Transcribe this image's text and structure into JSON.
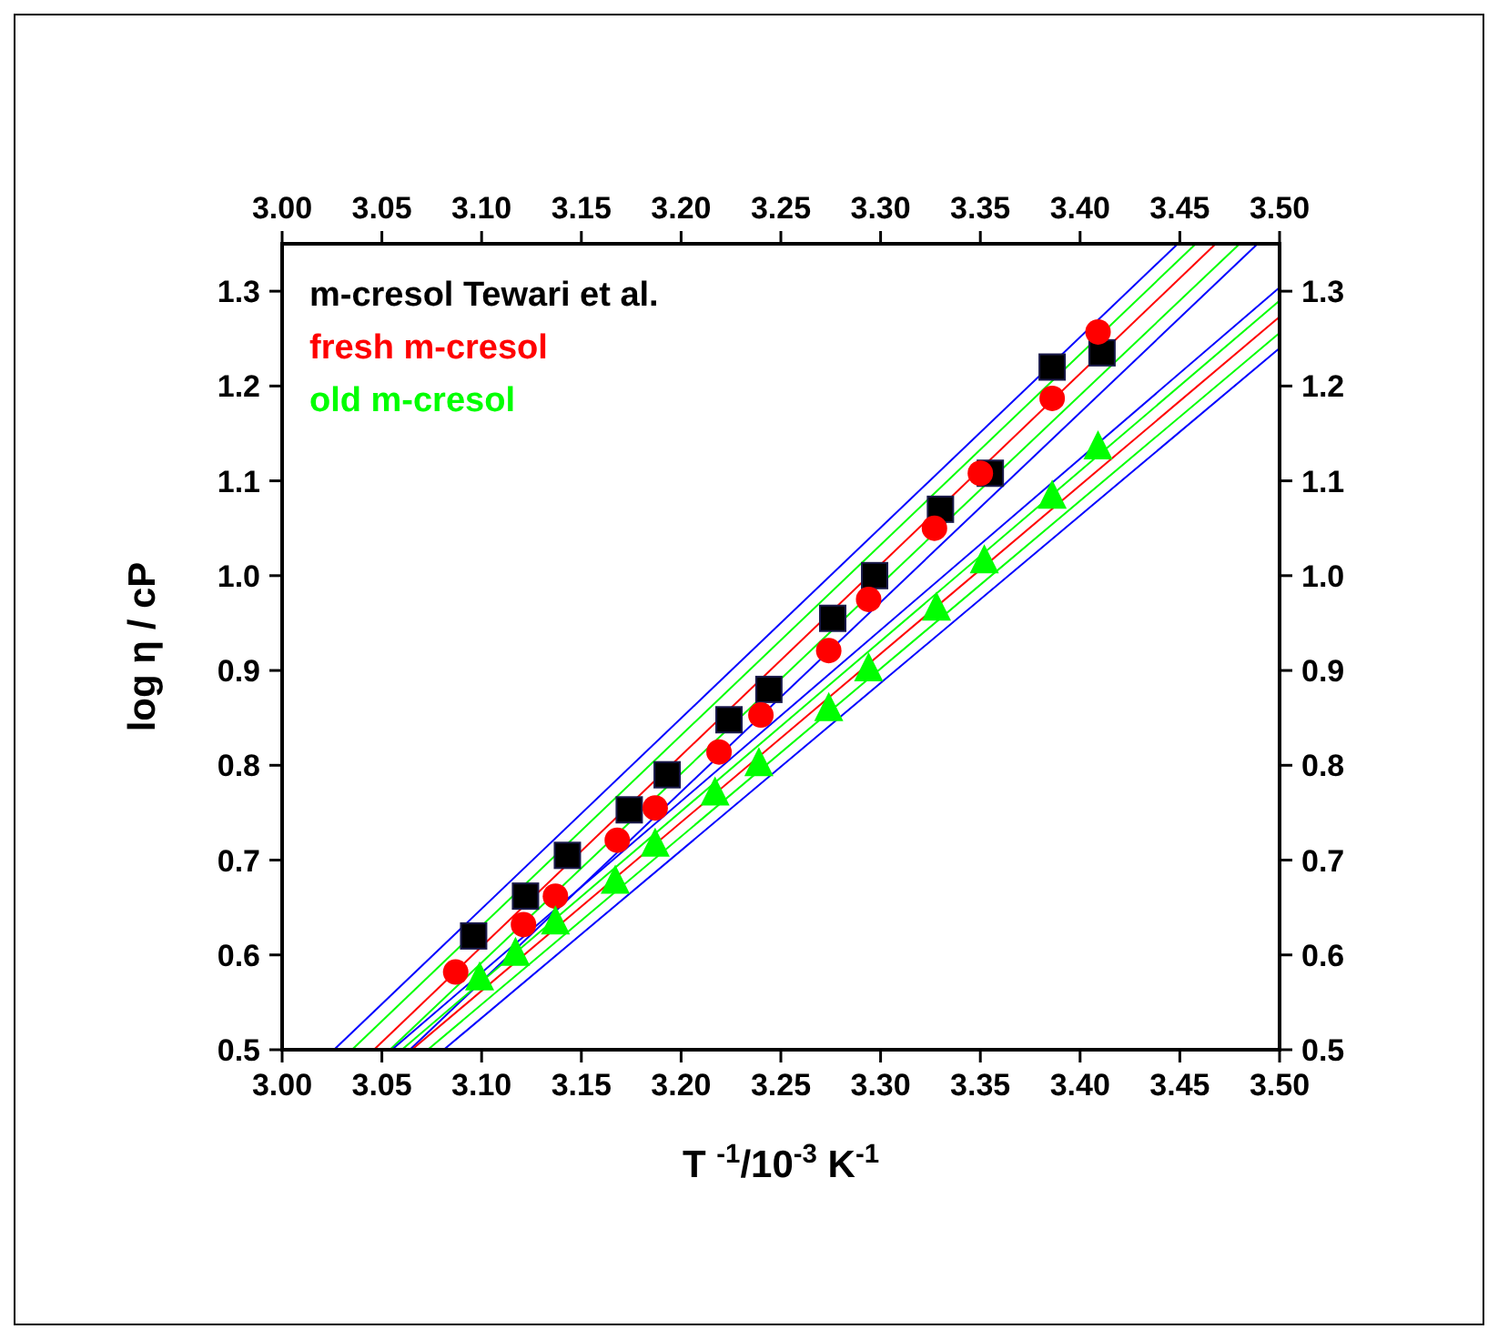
{
  "chart_data": {
    "type": "scatter",
    "xlabel": "T $^{-1}$/10$^{-3}$ K$^{-1}$",
    "ylabel": "log η / cP",
    "legend": "top left",
    "grid": false,
    "xlim": [
      3.0,
      3.5
    ],
    "ylim": [
      0.5,
      1.35
    ],
    "x2lim": [
      3.0,
      3.5
    ],
    "y2lim": [
      0.5,
      1.35
    ],
    "xticks": [
      {
        "value": 3.0,
        "label": "3.00"
      },
      3.05,
      {
        "value": 3.1,
        "label": "3.10"
      },
      3.15,
      {
        "value": 3.2,
        "label": "3.20"
      },
      3.25,
      {
        "value": 3.3,
        "label": "3.30"
      },
      3.35,
      {
        "value": 3.4,
        "label": "3.40"
      },
      3.45,
      {
        "value": 3.5,
        "label": "3.50"
      }
    ],
    "x2ticks": [
      {
        "value": 3.0,
        "label": "3.00"
      },
      3.05,
      {
        "value": 3.1,
        "label": "3.10"
      },
      3.15,
      {
        "value": 3.2,
        "label": "3.20"
      },
      3.25,
      {
        "value": 3.3,
        "label": "3.30"
      },
      3.35,
      {
        "value": 3.4,
        "label": "3.40"
      },
      3.45,
      {
        "value": 3.5,
        "label": "3.50"
      }
    ],
    "yticks": [
      0.5,
      0.6,
      0.7,
      0.8,
      0.9,
      {
        "value": 1.0,
        "label": "1.0"
      },
      1.1,
      1.2,
      1.3
    ],
    "y2ticks": [
      0.5,
      0.6,
      0.7,
      0.8,
      0.9,
      {
        "value": 1.0,
        "label": "1.0"
      },
      1.1,
      1.2,
      1.3
    ],
    "series": [
      {
        "type": "line",
        "color": "#0000ff",
        "x": [
          3.026,
          3.449
        ],
        "values": [
          0.5,
          1.35
        ]
      },
      {
        "type": "line",
        "color": "#00ff00",
        "x": [
          3.035,
          3.458
        ],
        "values": [
          0.5,
          1.35
        ]
      },
      {
        "type": "line",
        "color": "#ff0000",
        "x": [
          3.046,
          3.468
        ],
        "values": [
          0.5,
          1.35
        ]
      },
      {
        "type": "line",
        "color": "#00ff00",
        "x": [
          3.054,
          3.48
        ],
        "values": [
          0.5,
          1.35
        ]
      },
      {
        "type": "line",
        "color": "#0000ff",
        "x": [
          3.064,
          3.489
        ],
        "values": [
          0.5,
          1.35
        ]
      },
      {
        "type": "line",
        "color": "#0000ff",
        "x": [
          3.055,
          3.5
        ],
        "values": [
          0.5,
          1.304
        ]
      },
      {
        "type": "line",
        "color": "#00ff00",
        "x": [
          3.06,
          3.5
        ],
        "values": [
          0.5,
          1.29
        ]
      },
      {
        "type": "line",
        "color": "#ff0000",
        "x": [
          3.065,
          3.5
        ],
        "values": [
          0.5,
          1.273
        ]
      },
      {
        "type": "line",
        "color": "#00ff00",
        "x": [
          3.073,
          3.5
        ],
        "values": [
          0.5,
          1.256
        ]
      },
      {
        "type": "line",
        "color": "#0000ff",
        "x": [
          3.081,
          3.5
        ],
        "values": [
          0.5,
          1.24
        ]
      },
      {
        "name": "m-cresol Tewari et al.",
        "marker": "square",
        "color": "#000000",
        "x": [
          3.096,
          3.122,
          3.143,
          3.174,
          3.193,
          3.224,
          3.244,
          3.276,
          3.297,
          3.33,
          3.355,
          3.386,
          3.411
        ],
        "values": [
          0.62,
          0.662,
          0.705,
          0.753,
          0.79,
          0.848,
          0.88,
          0.955,
          1.0,
          1.07,
          1.108,
          1.22,
          1.235
        ]
      },
      {
        "name": "fresh m-cresol",
        "marker": "circle",
        "color": "#ff0000",
        "x": [
          3.087,
          3.121,
          3.137,
          3.168,
          3.187,
          3.219,
          3.24,
          3.274,
          3.294,
          3.327,
          3.35,
          3.386,
          3.409
        ],
        "values": [
          0.582,
          0.632,
          0.662,
          0.721,
          0.755,
          0.814,
          0.853,
          0.921,
          0.975,
          1.05,
          1.108,
          1.187,
          1.257
        ]
      },
      {
        "name": "old m-cresol",
        "marker": "triangle",
        "color": "#00ff00",
        "x": [
          3.099,
          3.117,
          3.137,
          3.167,
          3.187,
          3.217,
          3.239,
          3.274,
          3.294,
          3.328,
          3.352,
          3.386,
          3.409
        ],
        "values": [
          0.576,
          0.602,
          0.635,
          0.678,
          0.717,
          0.771,
          0.802,
          0.86,
          0.902,
          0.966,
          1.016,
          1.084,
          1.136
        ]
      }
    ]
  }
}
